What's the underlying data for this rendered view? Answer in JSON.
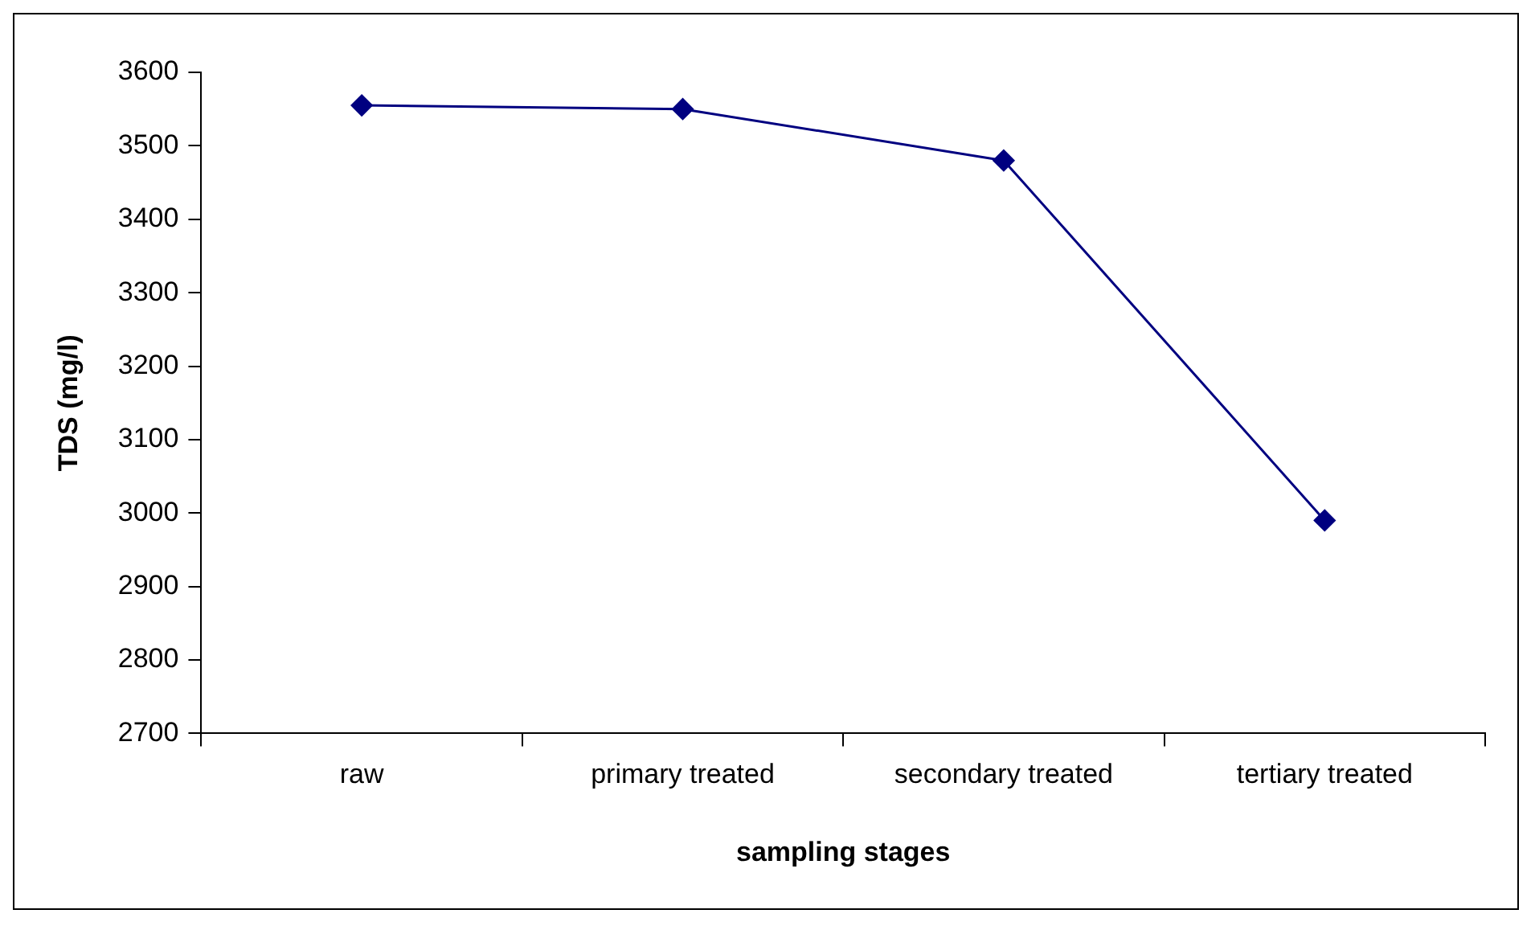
{
  "chart_data": {
    "type": "line",
    "xlabel": "sampling stages",
    "ylabel": "TDS (mg/l)",
    "categories": [
      "raw",
      "primary treated",
      "secondary treated",
      "tertiary treated"
    ],
    "series": [
      {
        "color": "#000080",
        "values": [
          3555,
          3550,
          3480,
          2990
        ]
      }
    ],
    "ylim": [
      2700,
      3600
    ],
    "yticks": [
      2700,
      2800,
      2900,
      3000,
      3100,
      3200,
      3300,
      3400,
      3500,
      3600
    ],
    "grid": false,
    "legend": false,
    "marker": "diamond",
    "line_style": "solid"
  }
}
